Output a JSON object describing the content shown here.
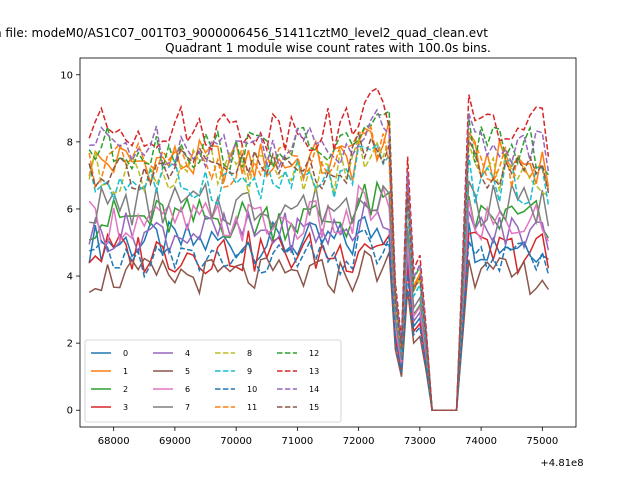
{
  "chart_data": {
    "type": "line",
    "suptitle": "n file: modeM0/AS1C07_001T03_9000006456_51411cztM0_level2_quad_clean.evt",
    "title": "Quadrant 1 module wise count rates with 100.0s bins.",
    "xlabel": "",
    "ylabel": "",
    "x_offset_label": "+4.81e8",
    "xlim": [
      67450,
      75550
    ],
    "ylim": [
      -0.5,
      10.5
    ],
    "xticks": [
      68000,
      69000,
      70000,
      71000,
      72000,
      73000,
      74000,
      75000
    ],
    "yticks": [
      0,
      2,
      4,
      6,
      8,
      10
    ],
    "legend": {
      "loc": "lower left",
      "ncol": 4
    },
    "series": [
      {
        "name": "0",
        "color": "#1f77b4",
        "dash": "solid",
        "base": 5.0,
        "amp": 0.28
      },
      {
        "name": "1",
        "color": "#ff7f0e",
        "dash": "solid",
        "base": 7.4,
        "amp": 0.3
      },
      {
        "name": "2",
        "color": "#2ca02c",
        "dash": "solid",
        "base": 5.7,
        "amp": 0.3
      },
      {
        "name": "3",
        "color": "#d62728",
        "dash": "solid",
        "base": 4.7,
        "amp": 0.3
      },
      {
        "name": "4",
        "color": "#9467bd",
        "dash": "solid",
        "base": 5.3,
        "amp": 0.28
      },
      {
        "name": "5",
        "color": "#8c564b",
        "dash": "solid",
        "base": 4.0,
        "amp": 0.25
      },
      {
        "name": "6",
        "color": "#e377c2",
        "dash": "solid",
        "base": 5.6,
        "amp": 0.3
      },
      {
        "name": "7",
        "color": "#7f7f7f",
        "dash": "solid",
        "base": 6.1,
        "amp": 0.3
      },
      {
        "name": "8",
        "color": "#bcbd22",
        "dash": "dashed",
        "base": 7.1,
        "amp": 0.3
      },
      {
        "name": "9",
        "color": "#17becf",
        "dash": "dashed",
        "base": 6.8,
        "amp": 0.3
      },
      {
        "name": "10",
        "color": "#1f77b4",
        "dash": "dashed",
        "base": 4.5,
        "amp": 0.25
      },
      {
        "name": "11",
        "color": "#ff7f0e",
        "dash": "dashed",
        "base": 7.3,
        "amp": 0.3
      },
      {
        "name": "12",
        "color": "#2ca02c",
        "dash": "dashed",
        "base": 7.8,
        "amp": 0.3
      },
      {
        "name": "13",
        "color": "#d62728",
        "dash": "dashed",
        "base": 8.4,
        "amp": 0.3
      },
      {
        "name": "14",
        "color": "#9467bd",
        "dash": "dashed",
        "base": 7.9,
        "amp": 0.3
      },
      {
        "name": "15",
        "color": "#8c564b",
        "dash": "dashed",
        "base": 7.2,
        "amp": 0.3
      }
    ]
  }
}
